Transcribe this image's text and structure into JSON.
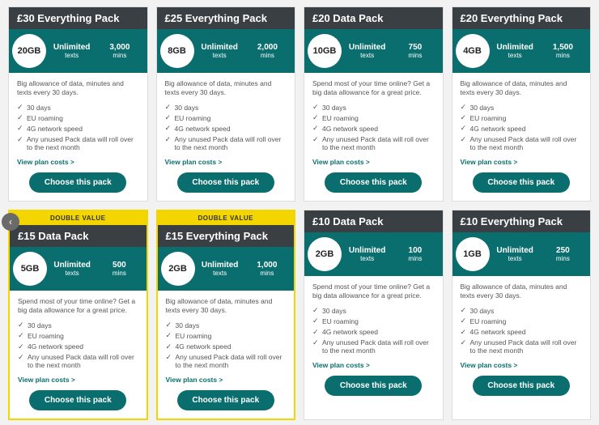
{
  "colors": {
    "header_bg": "#3a3f44",
    "stats_bg": "#0b6e6e",
    "promo_bg": "#f3d500",
    "btn_bg": "#0b6e6e",
    "link_color": "#0b6e6e",
    "page_bg": "#f2f2f2",
    "card_bg": "#ffffff"
  },
  "common": {
    "features": [
      "30 days",
      "EU roaming",
      "4G network speed",
      "Any unused Pack data will roll over to the next month"
    ],
    "link_label": "View plan costs",
    "link_chevron": ">",
    "button_label": "Choose this pack",
    "texts_label": "texts",
    "mins_label": "mins",
    "promo_label": "DOUBLE VALUE",
    "desc_everything": "Big allowance of data, minutes and texts every 30 days.",
    "desc_data": "Spend most of your time online? Get a big data allowance for a great price."
  },
  "packs": [
    {
      "title": "£30 Everything Pack",
      "data": "20GB",
      "texts": "Unlimited",
      "mins": "3,000",
      "desc_key": "desc_everything",
      "promo": false
    },
    {
      "title": "£25 Everything Pack",
      "data": "8GB",
      "texts": "Unlimited",
      "mins": "2,000",
      "desc_key": "desc_everything",
      "promo": false
    },
    {
      "title": "£20 Data Pack",
      "data": "10GB",
      "texts": "Unlimited",
      "mins": "750",
      "desc_key": "desc_data",
      "promo": false
    },
    {
      "title": "£20 Everything Pack",
      "data": "4GB",
      "texts": "Unlimited",
      "mins": "1,500",
      "desc_key": "desc_everything",
      "promo": false
    },
    {
      "title": "£15 Data Pack",
      "data": "5GB",
      "texts": "Unlimited",
      "mins": "500",
      "desc_key": "desc_data",
      "promo": true
    },
    {
      "title": "£15 Everything Pack",
      "data": "2GB",
      "texts": "Unlimited",
      "mins": "1,000",
      "desc_key": "desc_everything",
      "promo": true
    },
    {
      "title": "£10 Data Pack",
      "data": "2GB",
      "texts": "Unlimited",
      "mins": "100",
      "desc_key": "desc_data",
      "promo": false
    },
    {
      "title": "£10 Everything Pack",
      "data": "1GB",
      "texts": "Unlimited",
      "mins": "250",
      "desc_key": "desc_everything",
      "promo": false
    }
  ]
}
